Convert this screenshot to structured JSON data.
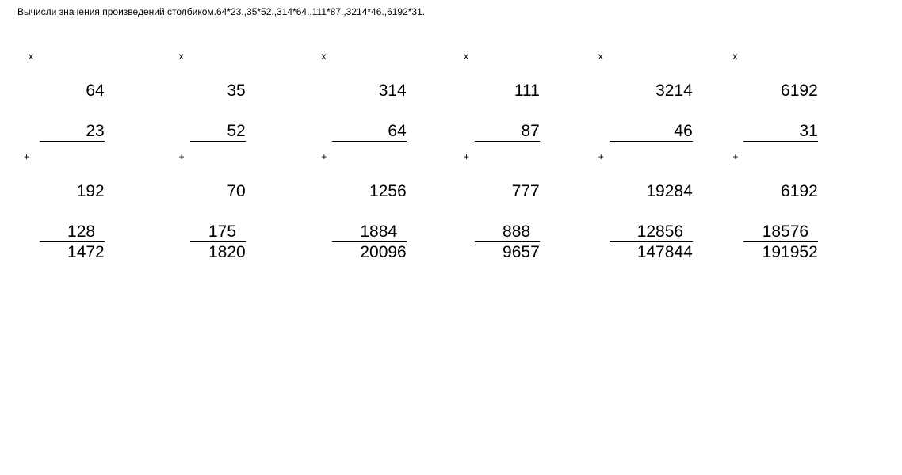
{
  "title": "Вычисли значения произведений столбиком.64*23.,35*52.,314*64.,111*87.,3214*46.,6192*31.",
  "colors": {
    "background": "#ffffff",
    "text": "#000000",
    "line": "#000000"
  },
  "typography": {
    "title_fontsize": 12,
    "number_fontsize": 21,
    "sign_fontsize": 12,
    "font_family": "Arial"
  },
  "symbols": {
    "multiply": "x",
    "add": "+"
  },
  "problems": [
    {
      "multiplicand": "64",
      "multiplier": "23",
      "partial1": "192",
      "partial2": "128  ",
      "result": "1472",
      "underline_multiplier_width": "2ch",
      "underline_partial2_width": "4ch"
    },
    {
      "multiplicand": "35",
      "multiplier": "52",
      "partial1": "70",
      "partial2": "175  ",
      "result": "1820",
      "underline_multiplier_width": "2ch",
      "underline_partial2_width": "4ch"
    },
    {
      "multiplicand": "314",
      "multiplier": "64",
      "partial1": "1256",
      "partial2": "1884  ",
      "result": "20096",
      "underline_multiplier_width": "3ch",
      "underline_partial2_width": "5ch"
    },
    {
      "multiplicand": "111",
      "multiplier": "87",
      "partial1": "777",
      "partial2": "888  ",
      "result": "9657",
      "underline_multiplier_width": "3ch",
      "underline_partial2_width": "4ch"
    },
    {
      "multiplicand": "3214",
      "multiplier": "46",
      "partial1": "19284",
      "partial2": "12856  ",
      "result": "147844",
      "underline_multiplier_width": "4ch",
      "underline_partial2_width": "6ch"
    },
    {
      "multiplicand": "6192",
      "multiplier": "31",
      "partial1": "6192",
      "partial2": "18576  ",
      "result": "191952",
      "underline_multiplier_width": "4ch",
      "underline_partial2_width": "6ch"
    }
  ]
}
